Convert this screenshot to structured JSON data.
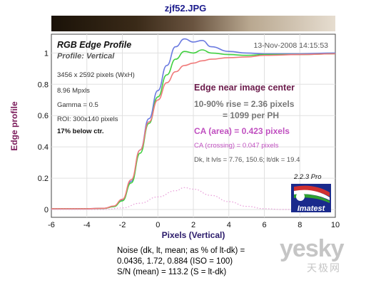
{
  "file_title": "zjf52.JPG",
  "chart_data": {
    "type": "line",
    "title": "RGB Edge Profile",
    "subtitle": "Profile: Vertical",
    "timestamp": "13-Nov-2008 14:15:53",
    "xlabel": "Pixels (Vertical)",
    "ylabel": "Edge profile",
    "xlim": [
      -6,
      10
    ],
    "ylim": [
      -0.05,
      1.12
    ],
    "xticks": [
      "-6",
      "-4",
      "-2",
      "0",
      "2",
      "4",
      "6",
      "8",
      "10"
    ],
    "yticks": [
      "0",
      "0.2",
      "0.4",
      "0.6",
      "0.8",
      "1"
    ],
    "grid": true,
    "info_lines": [
      "3456 x 2592 pixels (WxH)",
      "8.96 Mpxls",
      "Gamma = 0.5",
      "ROI: 300x140 pixels"
    ],
    "info_bold": "17% below ctr.",
    "annotations": {
      "heading": "Edge near image center",
      "rise_line1": "10-90% rise = 2.36 pixels",
      "rise_line2": "= 1099 per PH",
      "ca_area": "CA (area) = 0.423 pixels",
      "ca_crossing": "CA (crossing) = 0.047 pixels",
      "levels": "Dk, lt lvls = 7.76, 150.6;  lt/dk = 19.4"
    },
    "version": "2.2.3  Pro",
    "logo_text": "Imatest",
    "series": [
      {
        "color": "#6a7ae0",
        "x": [
          -6,
          -4,
          -3,
          -2.5,
          -2,
          -1.5,
          -1,
          -0.5,
          0,
          0.5,
          1,
          1.5,
          2,
          2.5,
          3,
          4,
          5,
          6,
          8,
          10
        ],
        "y": [
          0.005,
          0.005,
          0.008,
          0.02,
          0.06,
          0.18,
          0.38,
          0.58,
          0.76,
          0.92,
          1.04,
          1.09,
          1.07,
          1.08,
          1.04,
          1.01,
          1.0,
          0.995,
          0.995,
          1.0
        ]
      },
      {
        "color": "#40d040",
        "x": [
          -6,
          -4,
          -3,
          -2.5,
          -2,
          -1.5,
          -1,
          -0.5,
          0,
          0.5,
          1,
          1.5,
          2,
          2.5,
          3,
          4,
          5,
          6,
          8,
          10
        ],
        "y": [
          0.005,
          0.005,
          0.007,
          0.018,
          0.055,
          0.17,
          0.36,
          0.55,
          0.72,
          0.86,
          0.96,
          1.01,
          1.0,
          1.02,
          1.0,
          0.99,
          0.985,
          0.99,
          0.99,
          0.995
        ]
      },
      {
        "color": "#f07a7a",
        "x": [
          -6,
          -4,
          -3,
          -2.5,
          -2,
          -1.5,
          -1,
          -0.5,
          0,
          0.5,
          1,
          1.5,
          2,
          2.5,
          3,
          4,
          5,
          6,
          8,
          10
        ],
        "y": [
          0.005,
          0.005,
          0.008,
          0.022,
          0.065,
          0.19,
          0.38,
          0.56,
          0.7,
          0.81,
          0.88,
          0.92,
          0.935,
          0.95,
          0.96,
          0.97,
          0.975,
          0.985,
          0.99,
          0.995
        ]
      },
      {
        "color": "#e89ad8",
        "dashed": true,
        "x": [
          -6,
          -3,
          -2,
          -1,
          0,
          1,
          1.5,
          2,
          3,
          4,
          5,
          6,
          7,
          8
        ],
        "y": [
          0.0,
          0.0,
          0.01,
          0.04,
          0.08,
          0.12,
          0.14,
          0.13,
          0.09,
          0.05,
          0.02,
          0.005,
          0.0,
          0.0
        ]
      }
    ]
  },
  "noise": {
    "line1": "Noise (dk, lt, mean; as % of lt-dk) =",
    "line2": "0.0436,  1.72,  0.884  (ISO =  100)",
    "line3": "S/N (mean) = 113.2  (S = lt-dk)"
  },
  "watermark": "yesky",
  "watermark_sub": "天极网"
}
